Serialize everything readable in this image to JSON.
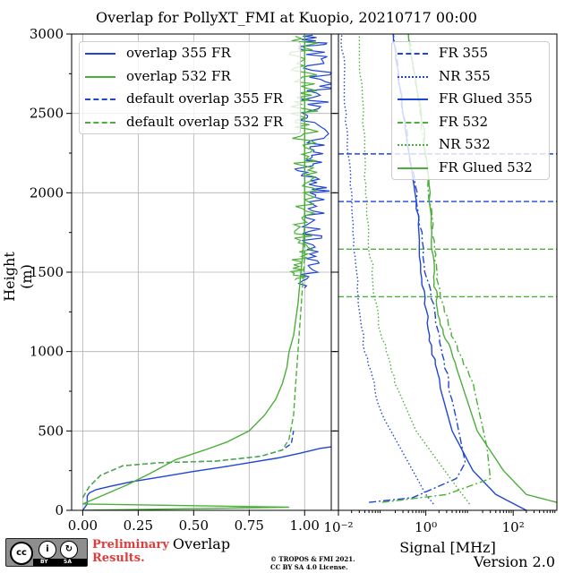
{
  "figure": {
    "title": "Overlap for PollyXT_FMI at Kuopio, 20210717 00:00",
    "version": "Version 2.0",
    "preliminary": [
      "Preliminary",
      "Results."
    ],
    "copyright": [
      "© TROPOS & FMI 2021.",
      "CC BY SA 4.0 License."
    ],
    "cc_badge": {
      "main": "cc",
      "by": "BY",
      "sa": "SA",
      "by_icon": "person-icon",
      "sa_icon": "share-alike-icon"
    }
  },
  "chart_data": [
    {
      "type": "line",
      "xlabel": "Overlap",
      "ylabel": "Height (m)",
      "xlim": [
        -0.05,
        1.12
      ],
      "ylim": [
        0,
        3000
      ],
      "grid": true,
      "legend_position": "top-left",
      "x_ticks": [
        0.0,
        0.25,
        0.5,
        0.75,
        1.0
      ],
      "x_tick_labels": [
        "0.00",
        "0.25",
        "0.50",
        "0.75",
        "1.00"
      ],
      "y_ticks": [
        0,
        500,
        1000,
        1500,
        2000,
        2500,
        3000
      ],
      "y_tick_labels": [
        "0",
        "500",
        "1000",
        "1500",
        "2000",
        "2500",
        "3000"
      ],
      "series": [
        {
          "name": "overlap 355 FR",
          "color": "#1f45d6",
          "style": "solid",
          "points": [
            [
              0.0,
              0
            ],
            [
              0.02,
              40
            ],
            [
              0.02,
              90
            ],
            [
              0.03,
              110
            ],
            [
              0.06,
              130
            ],
            [
              0.12,
              150
            ],
            [
              0.22,
              180
            ],
            [
              0.35,
              210
            ],
            [
              0.5,
              245
            ],
            [
              0.62,
              270
            ],
            [
              0.75,
              300
            ],
            [
              0.88,
              330
            ],
            [
              0.98,
              360
            ],
            [
              1.07,
              390
            ],
            [
              1.12,
              400
            ]
          ],
          "noisy_points": [
            [
              1.0,
              1400
            ],
            [
              1.05,
              1600
            ],
            [
              1.02,
              1800
            ],
            [
              1.07,
              2000
            ],
            [
              1.01,
              2150
            ],
            [
              1.06,
              2300
            ],
            [
              1.03,
              2500
            ],
            [
              1.08,
              2700
            ],
            [
              1.04,
              2900
            ],
            [
              1.06,
              3000
            ]
          ]
        },
        {
          "name": "overlap 532 FR",
          "color": "#4caf3a",
          "style": "solid",
          "points": [
            [
              0.0,
              0
            ],
            [
              0.93,
              20
            ],
            [
              0.0,
              40
            ],
            [
              0.2,
              160
            ],
            [
              0.3,
              230
            ],
            [
              0.42,
              320
            ],
            [
              0.55,
              380
            ],
            [
              0.65,
              430
            ],
            [
              0.75,
              500
            ],
            [
              0.82,
              600
            ],
            [
              0.87,
              700
            ],
            [
              0.9,
              800
            ],
            [
              0.92,
              900
            ],
            [
              0.93,
              1000
            ],
            [
              0.95,
              1100
            ],
            [
              0.96,
              1200
            ],
            [
              0.97,
              1300
            ],
            [
              0.98,
              1450
            ],
            [
              0.99,
              1600
            ],
            [
              1.0,
              1800
            ],
            [
              1.0,
              2000
            ],
            [
              1.0,
              2200
            ],
            [
              1.0,
              2400
            ],
            [
              1.0,
              2600
            ],
            [
              1.0,
              2800
            ],
            [
              1.0,
              3000
            ]
          ]
        },
        {
          "name": "default overlap 355 FR",
          "color": "#1f45d6",
          "style": "dashed",
          "points": [
            [
              0.0,
              80
            ],
            [
              0.03,
              150
            ],
            [
              0.08,
              220
            ],
            [
              0.18,
              280
            ],
            [
              0.35,
              300
            ],
            [
              0.6,
              310
            ],
            [
              0.8,
              340
            ],
            [
              0.9,
              380
            ],
            [
              0.94,
              420
            ],
            [
              0.95,
              500
            ]
          ]
        },
        {
          "name": "default overlap 532 FR",
          "color": "#4caf3a",
          "style": "dashed",
          "points": [
            [
              0.0,
              80
            ],
            [
              0.03,
              150
            ],
            [
              0.08,
              220
            ],
            [
              0.18,
              280
            ],
            [
              0.35,
              300
            ],
            [
              0.6,
              310
            ],
            [
              0.8,
              340
            ],
            [
              0.9,
              380
            ],
            [
              0.93,
              450
            ],
            [
              0.95,
              600
            ],
            [
              0.96,
              800
            ],
            [
              0.97,
              1000
            ],
            [
              0.98,
              1200
            ],
            [
              0.99,
              1400
            ],
            [
              1.0,
              1600
            ],
            [
              1.0,
              1800
            ],
            [
              1.0,
              2000
            ]
          ]
        }
      ]
    },
    {
      "type": "line",
      "xlabel": "Signal [MHz]",
      "xscale": "log",
      "xlim": [
        0.01,
        1000
      ],
      "ylim": [
        0,
        3000
      ],
      "grid": false,
      "legend_position": "top-right",
      "x_ticks": [
        0.01,
        1,
        100
      ],
      "x_tick_labels": [
        "10⁻²",
        "10⁰",
        "10²"
      ],
      "hlines": [
        {
          "y": 2245,
          "color": "#1f45d6",
          "style": "dashed"
        },
        {
          "y": 1945,
          "color": "#1f45d6",
          "style": "dashed"
        },
        {
          "y": 1645,
          "color": "#4caf3a",
          "style": "dashed"
        },
        {
          "y": 1345,
          "color": "#4caf3a",
          "style": "dashed"
        }
      ],
      "series": [
        {
          "name": "FR 355",
          "color": "#1f45d6",
          "style": "dashdot",
          "points": [
            [
              0.05,
              50
            ],
            [
              0.5,
              80
            ],
            [
              5,
              200
            ],
            [
              8,
              300
            ],
            [
              4,
              700
            ],
            [
              2,
              1100
            ],
            [
              1,
              1500
            ],
            [
              0.6,
              2000
            ],
            [
              0.3,
              2500
            ],
            [
              0.18,
              3000
            ]
          ]
        },
        {
          "name": "NR 355",
          "color": "#1f45d6",
          "style": "dotted",
          "points": [
            [
              1.5,
              40
            ],
            [
              1,
              100
            ],
            [
              0.4,
              300
            ],
            [
              0.1,
              600
            ],
            [
              0.04,
              1000
            ],
            [
              0.025,
              1500
            ],
            [
              0.02,
              2000
            ],
            [
              0.015,
              2500
            ],
            [
              0.012,
              3000
            ]
          ]
        },
        {
          "name": "FR Glued 355",
          "color": "#1f45d6",
          "style": "solid",
          "points": [
            [
              200,
              0
            ],
            [
              40,
              100
            ],
            [
              12,
              250
            ],
            [
              4,
              500
            ],
            [
              2,
              800
            ],
            [
              1.2,
              1100
            ],
            [
              0.8,
              1500
            ],
            [
              0.6,
              2000
            ],
            [
              0.3,
              2500
            ],
            [
              0.18,
              3000
            ]
          ]
        },
        {
          "name": "FR 532",
          "color": "#4caf3a",
          "style": "dashdot",
          "points": [
            [
              0.1,
              50
            ],
            [
              3,
              100
            ],
            [
              30,
              200
            ],
            [
              25,
              400
            ],
            [
              12,
              800
            ],
            [
              4,
              1100
            ],
            [
              2,
              1400
            ],
            [
              1.5,
              1700
            ],
            [
              1,
              2200
            ],
            [
              0.6,
              2700
            ],
            [
              0.4,
              3000
            ]
          ]
        },
        {
          "name": "NR 532",
          "color": "#4caf3a",
          "style": "dotted",
          "points": [
            [
              10,
              40
            ],
            [
              5,
              150
            ],
            [
              2,
              300
            ],
            [
              0.6,
              500
            ],
            [
              0.2,
              800
            ],
            [
              0.08,
              1200
            ],
            [
              0.05,
              1700
            ],
            [
              0.04,
              2200
            ],
            [
              0.03,
              3000
            ]
          ]
        },
        {
          "name": "FR Glued 532",
          "color": "#4caf3a",
          "style": "solid",
          "points": [
            [
              1000,
              50
            ],
            [
              200,
              100
            ],
            [
              60,
              250
            ],
            [
              15,
              500
            ],
            [
              5,
              900
            ],
            [
              2,
              1200
            ],
            [
              1.5,
              1500
            ],
            [
              1.2,
              2000
            ],
            [
              0.8,
              2500
            ],
            [
              0.4,
              3000
            ]
          ]
        }
      ]
    }
  ]
}
